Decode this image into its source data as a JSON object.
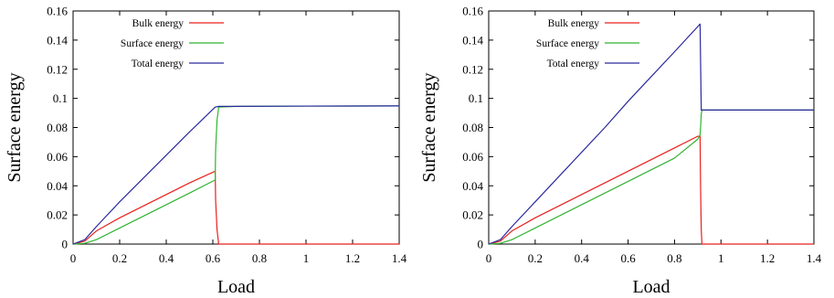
{
  "chart_data": [
    {
      "type": "line",
      "title": "",
      "xlabel": "Load",
      "ylabel": "Surface energy",
      "xlim": [
        0,
        1.4
      ],
      "ylim": [
        0,
        0.16
      ],
      "xticks": [
        "0",
        "0.2",
        "0.4",
        "0.6",
        "0.8",
        "1",
        "1.2",
        "1.4"
      ],
      "yticks": [
        "0",
        "0.02",
        "0.04",
        "0.06",
        "0.08",
        "0.1",
        "0.12",
        "0.14",
        "0.16"
      ],
      "grid": false,
      "legend_position": "top-left",
      "series": [
        {
          "name": "Bulk energy",
          "color": "#e8201c",
          "points": [
            [
              0,
              0
            ],
            [
              0.05,
              0.002
            ],
            [
              0.1,
              0.009
            ],
            [
              0.2,
              0.018
            ],
            [
              0.3,
              0.026
            ],
            [
              0.4,
              0.034
            ],
            [
              0.5,
              0.042
            ],
            [
              0.61,
              0.05
            ],
            [
              0.612,
              0.03
            ],
            [
              0.618,
              0.01
            ],
            [
              0.625,
              0
            ],
            [
              1.4,
              0
            ]
          ]
        },
        {
          "name": "Surface energy",
          "color": "#2fb52f",
          "points": [
            [
              0,
              0
            ],
            [
              0.05,
              0.0005
            ],
            [
              0.1,
              0.003
            ],
            [
              0.2,
              0.011
            ],
            [
              0.3,
              0.019
            ],
            [
              0.4,
              0.027
            ],
            [
              0.5,
              0.035
            ],
            [
              0.61,
              0.044
            ],
            [
              0.612,
              0.065
            ],
            [
              0.618,
              0.085
            ],
            [
              0.625,
              0.094
            ],
            [
              0.7,
              0.0945
            ],
            [
              1.0,
              0.0947
            ],
            [
              1.4,
              0.0948
            ]
          ]
        },
        {
          "name": "Total energy",
          "color": "#2a2a9e",
          "points": [
            [
              0,
              0
            ],
            [
              0.05,
              0.003
            ],
            [
              0.1,
              0.012
            ],
            [
              0.2,
              0.029
            ],
            [
              0.3,
              0.045
            ],
            [
              0.4,
              0.061
            ],
            [
              0.5,
              0.077
            ],
            [
              0.61,
              0.094
            ],
            [
              0.625,
              0.0945
            ],
            [
              1.0,
              0.0947
            ],
            [
              1.4,
              0.0948
            ]
          ]
        }
      ]
    },
    {
      "type": "line",
      "title": "",
      "xlabel": "Load",
      "ylabel": "Surface energy",
      "xlim": [
        0,
        1.4
      ],
      "ylim": [
        0,
        0.16
      ],
      "xticks": [
        "0",
        "0.2",
        "0.4",
        "0.6",
        "0.8",
        "1",
        "1.2",
        "1.4"
      ],
      "yticks": [
        "0",
        "0.02",
        "0.04",
        "0.06",
        "0.08",
        "0.1",
        "0.12",
        "0.14",
        "0.16"
      ],
      "grid": false,
      "legend_position": "top-left",
      "series": [
        {
          "name": "Bulk energy",
          "color": "#e8201c",
          "points": [
            [
              0,
              0
            ],
            [
              0.05,
              0.002
            ],
            [
              0.1,
              0.009
            ],
            [
              0.2,
              0.018
            ],
            [
              0.3,
              0.026
            ],
            [
              0.4,
              0.034
            ],
            [
              0.5,
              0.042
            ],
            [
              0.6,
              0.05
            ],
            [
              0.7,
              0.058
            ],
            [
              0.8,
              0.066
            ],
            [
              0.9,
              0.074
            ],
            [
              0.91,
              0.074
            ],
            [
              0.912,
              0.04
            ],
            [
              0.915,
              0.01
            ],
            [
              0.918,
              0
            ],
            [
              1.4,
              0
            ]
          ]
        },
        {
          "name": "Surface energy",
          "color": "#2fb52f",
          "points": [
            [
              0,
              0
            ],
            [
              0.05,
              0.0005
            ],
            [
              0.1,
              0.003
            ],
            [
              0.2,
              0.011
            ],
            [
              0.3,
              0.019
            ],
            [
              0.4,
              0.027
            ],
            [
              0.5,
              0.035
            ],
            [
              0.6,
              0.043
            ],
            [
              0.7,
              0.051
            ],
            [
              0.8,
              0.059
            ],
            [
              0.9,
              0.072
            ],
            [
              0.91,
              0.075
            ],
            [
              0.912,
              0.08
            ],
            [
              0.915,
              0.089
            ],
            [
              0.918,
              0.092
            ],
            [
              1.4,
              0.092
            ]
          ]
        },
        {
          "name": "Total energy",
          "color": "#2a2a9e",
          "points": [
            [
              0,
              0
            ],
            [
              0.05,
              0.003
            ],
            [
              0.1,
              0.012
            ],
            [
              0.2,
              0.029
            ],
            [
              0.3,
              0.046
            ],
            [
              0.4,
              0.063
            ],
            [
              0.5,
              0.08
            ],
            [
              0.6,
              0.098
            ],
            [
              0.7,
              0.115
            ],
            [
              0.8,
              0.132
            ],
            [
              0.91,
              0.151
            ],
            [
              0.915,
              0.092
            ],
            [
              1.4,
              0.092
            ]
          ]
        }
      ]
    }
  ]
}
